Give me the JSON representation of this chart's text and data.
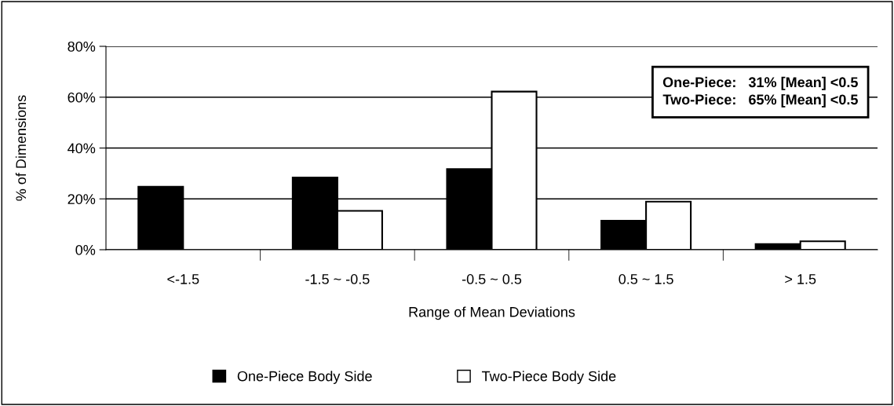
{
  "chart_data": {
    "type": "bar",
    "xlabel": "Range of Mean Deviations",
    "ylabel": "% of Dimensions",
    "categories": [
      "<-1.5",
      "-1.5 ~ -0.5",
      "-0.5 ~ 0.5",
      "0.5 ~ 1.5",
      "> 1.5"
    ],
    "series": [
      {
        "name": "One-Piece Body Side",
        "color": "#000000",
        "values": [
          24.8,
          28.4,
          31.7,
          11.4,
          2.2
        ]
      },
      {
        "name": "Two-Piece Body Side",
        "color": "#ffffff",
        "values": [
          null,
          15.3,
          62.2,
          18.9,
          3.3
        ]
      }
    ],
    "ylim": [
      0,
      80
    ],
    "yticks": [
      {
        "value": 0,
        "label": "0%"
      },
      {
        "value": 20,
        "label": "20%"
      },
      {
        "value": 40,
        "label": "40%"
      },
      {
        "value": 60,
        "label": "60%"
      },
      {
        "value": 80,
        "label": "80%"
      }
    ],
    "grid": "y",
    "legend": "bottom",
    "annotations": [
      "One-Piece:   31% [Mean] <0.5\nTwo-Piece:   65% [Mean] <0.5"
    ]
  }
}
